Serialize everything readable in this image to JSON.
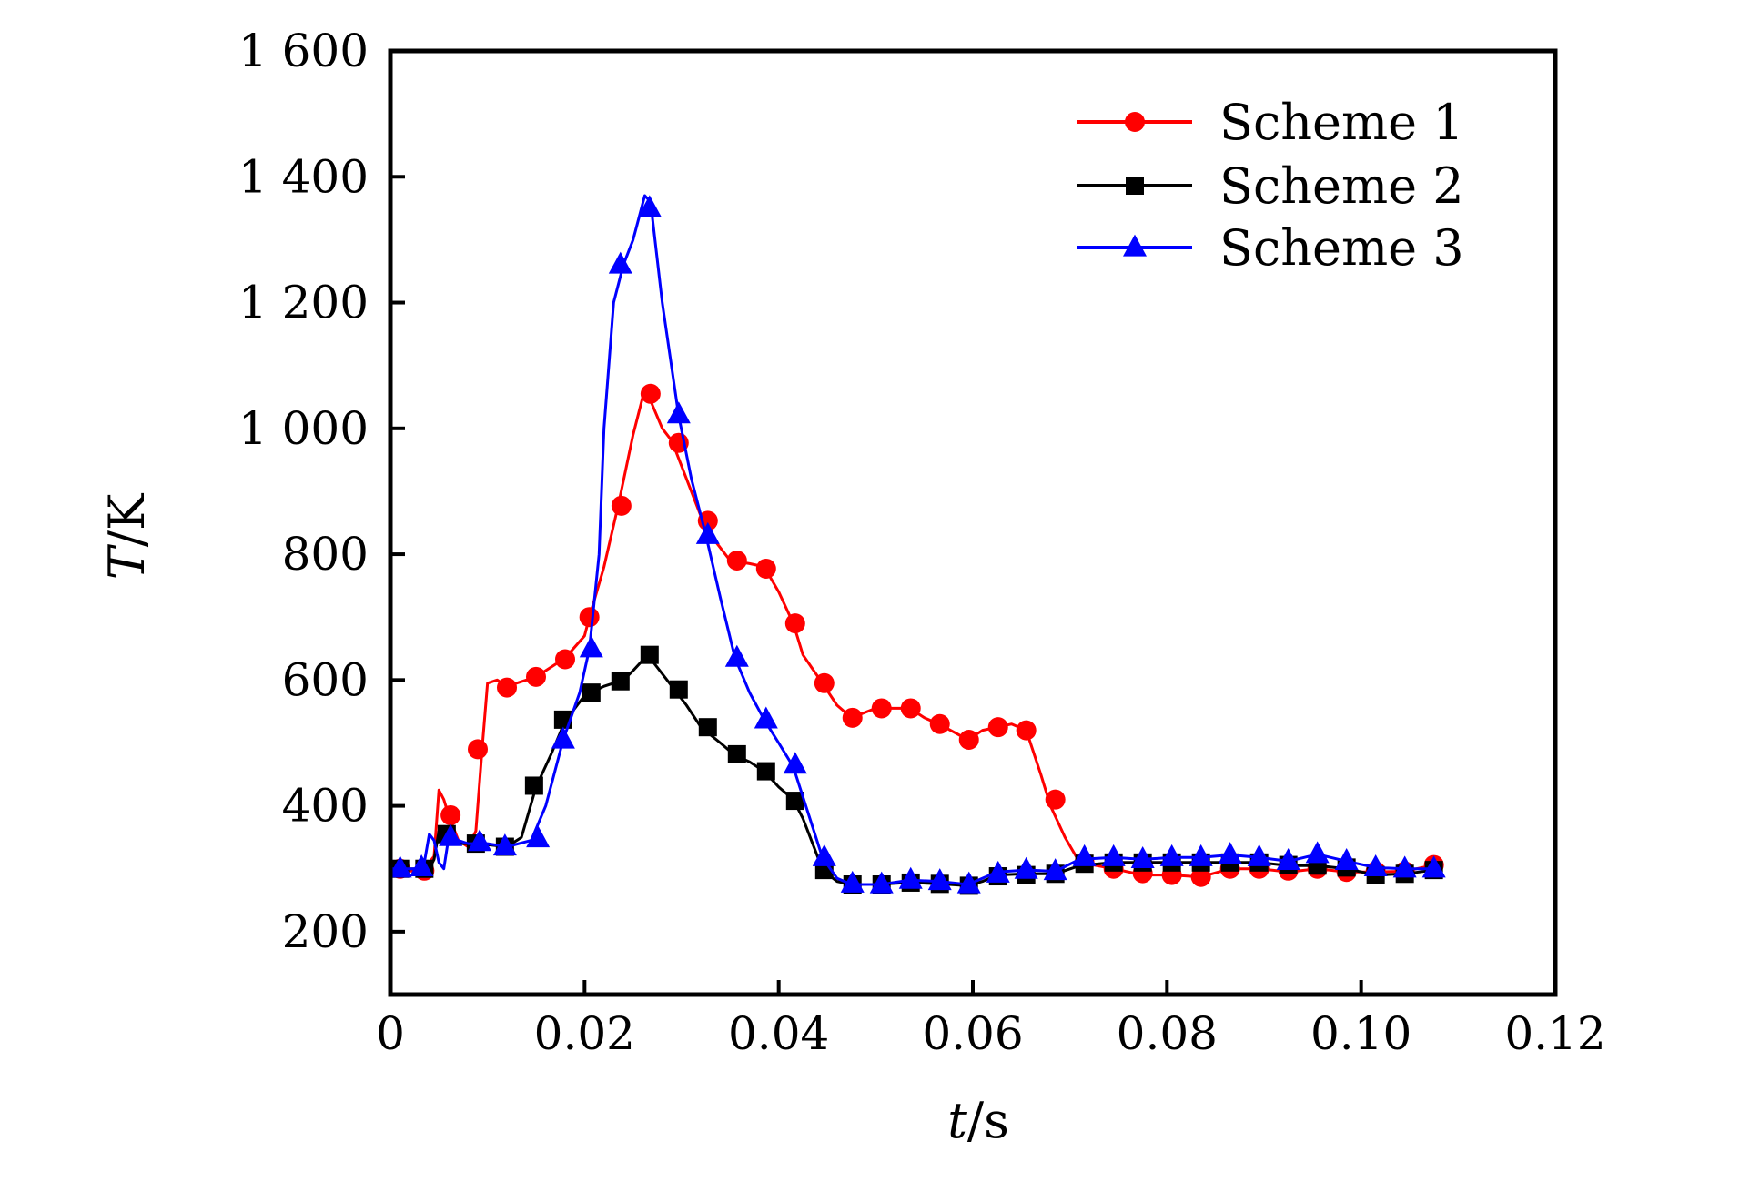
{
  "chart_data": {
    "type": "line",
    "title": "",
    "xlabel": {
      "var": "t",
      "unit": "/s"
    },
    "ylabel": {
      "var": "T",
      "unit": "/K"
    },
    "xlim": [
      0,
      0.12
    ],
    "ylim": [
      100,
      1600
    ],
    "x_ticks": [
      0,
      0.02,
      0.04,
      0.06,
      0.08,
      0.1,
      0.12
    ],
    "x_tick_labels": [
      "0",
      "0.02",
      "0.04",
      "0.06",
      "0.08",
      "0.10",
      "0.12"
    ],
    "y_ticks": [
      200,
      400,
      600,
      800,
      1000,
      1200,
      1400,
      1600
    ],
    "y_tick_labels": [
      "200",
      "400",
      "600",
      "800",
      "1 000",
      "1 200",
      "1 400",
      "1 600"
    ],
    "grid": false,
    "legend_position": "top-right",
    "series": [
      {
        "name": "Scheme 1",
        "color": "#ff0000",
        "marker": "circle",
        "line": [
          [
            0,
            300
          ],
          [
            0.003,
            295
          ],
          [
            0.004,
            310
          ],
          [
            0.0045,
            320
          ],
          [
            0.005,
            425
          ],
          [
            0.0055,
            410
          ],
          [
            0.006,
            385
          ],
          [
            0.007,
            345
          ],
          [
            0.008,
            335
          ],
          [
            0.0088,
            360
          ],
          [
            0.0095,
            500
          ],
          [
            0.01,
            595
          ],
          [
            0.011,
            600
          ],
          [
            0.012,
            590
          ],
          [
            0.015,
            605
          ],
          [
            0.018,
            635
          ],
          [
            0.02,
            670
          ],
          [
            0.0205,
            700
          ],
          [
            0.022,
            780
          ],
          [
            0.0235,
            880
          ],
          [
            0.025,
            990
          ],
          [
            0.026,
            1050
          ],
          [
            0.0265,
            1055
          ],
          [
            0.028,
            1000
          ],
          [
            0.029,
            980
          ],
          [
            0.0305,
            920
          ],
          [
            0.032,
            860
          ],
          [
            0.0335,
            820
          ],
          [
            0.035,
            790
          ],
          [
            0.037,
            785
          ],
          [
            0.0385,
            780
          ],
          [
            0.04,
            740
          ],
          [
            0.0415,
            690
          ],
          [
            0.0425,
            640
          ],
          [
            0.0445,
            595
          ],
          [
            0.046,
            560
          ],
          [
            0.0475,
            540
          ],
          [
            0.05,
            555
          ],
          [
            0.0535,
            555
          ],
          [
            0.055,
            540
          ],
          [
            0.0565,
            530
          ],
          [
            0.0595,
            505
          ],
          [
            0.061,
            520
          ],
          [
            0.0625,
            525
          ],
          [
            0.064,
            530
          ],
          [
            0.0655,
            520
          ],
          [
            0.067,
            450
          ],
          [
            0.068,
            400
          ],
          [
            0.0695,
            350
          ],
          [
            0.071,
            310
          ],
          [
            0.0745,
            300
          ],
          [
            0.0775,
            290
          ],
          [
            0.0805,
            290
          ],
          [
            0.0835,
            287
          ],
          [
            0.0865,
            300
          ],
          [
            0.0895,
            300
          ],
          [
            0.0925,
            295
          ],
          [
            0.0955,
            300
          ],
          [
            0.0985,
            295
          ],
          [
            0.1015,
            295
          ],
          [
            0.1045,
            296
          ],
          [
            0.1075,
            306
          ]
        ],
        "markers": [
          [
            0.001,
            300
          ],
          [
            0.0035,
            297
          ],
          [
            0.0062,
            385
          ],
          [
            0.009,
            490
          ],
          [
            0.012,
            588
          ],
          [
            0.015,
            605
          ],
          [
            0.018,
            633
          ],
          [
            0.0205,
            700
          ],
          [
            0.0238,
            877
          ],
          [
            0.0268,
            1055
          ],
          [
            0.0297,
            977
          ],
          [
            0.0327,
            853
          ],
          [
            0.0357,
            790
          ],
          [
            0.0387,
            777
          ],
          [
            0.0417,
            690
          ],
          [
            0.0447,
            595
          ],
          [
            0.0476,
            540
          ],
          [
            0.0506,
            555
          ],
          [
            0.0536,
            555
          ],
          [
            0.0566,
            530
          ],
          [
            0.0596,
            505
          ],
          [
            0.0626,
            525
          ],
          [
            0.0655,
            520
          ],
          [
            0.0685,
            410
          ],
          [
            0.0715,
            310
          ],
          [
            0.0745,
            300
          ],
          [
            0.0775,
            293
          ],
          [
            0.0805,
            290
          ],
          [
            0.0835,
            287
          ],
          [
            0.0865,
            300
          ],
          [
            0.0895,
            300
          ],
          [
            0.0925,
            297
          ],
          [
            0.0955,
            300
          ],
          [
            0.0985,
            295
          ],
          [
            0.1015,
            296
          ],
          [
            0.1045,
            296
          ],
          [
            0.1075,
            306
          ]
        ]
      },
      {
        "name": "Scheme 2",
        "color": "#000000",
        "marker": "square",
        "line": [
          [
            0,
            300
          ],
          [
            0.003,
            300
          ],
          [
            0.004,
            300
          ],
          [
            0.0045,
            315
          ],
          [
            0.005,
            360
          ],
          [
            0.0055,
            345
          ],
          [
            0.006,
            345
          ],
          [
            0.007,
            340
          ],
          [
            0.009,
            340
          ],
          [
            0.012,
            335
          ],
          [
            0.0135,
            350
          ],
          [
            0.015,
            430
          ],
          [
            0.0165,
            480
          ],
          [
            0.018,
            535
          ],
          [
            0.02,
            575
          ],
          [
            0.022,
            590
          ],
          [
            0.024,
            600
          ],
          [
            0.025,
            615
          ],
          [
            0.0265,
            640
          ],
          [
            0.0275,
            620
          ],
          [
            0.029,
            590
          ],
          [
            0.0305,
            560
          ],
          [
            0.032,
            525
          ],
          [
            0.034,
            500
          ],
          [
            0.0355,
            480
          ],
          [
            0.037,
            470
          ],
          [
            0.0385,
            455
          ],
          [
            0.04,
            430
          ],
          [
            0.0415,
            410
          ],
          [
            0.0425,
            380
          ],
          [
            0.044,
            320
          ],
          [
            0.0445,
            298
          ],
          [
            0.046,
            280
          ],
          [
            0.0475,
            275
          ],
          [
            0.05,
            275
          ],
          [
            0.0535,
            278
          ],
          [
            0.0565,
            276
          ],
          [
            0.0595,
            273
          ],
          [
            0.061,
            280
          ],
          [
            0.0625,
            290
          ],
          [
            0.0655,
            292
          ],
          [
            0.0685,
            292
          ],
          [
            0.071,
            305
          ],
          [
            0.0745,
            310
          ],
          [
            0.0775,
            310
          ],
          [
            0.0805,
            310
          ],
          [
            0.0835,
            310
          ],
          [
            0.0865,
            310
          ],
          [
            0.0895,
            310
          ],
          [
            0.0925,
            305
          ],
          [
            0.0955,
            305
          ],
          [
            0.0985,
            300
          ],
          [
            0.1015,
            290
          ],
          [
            0.1045,
            292
          ],
          [
            0.1075,
            298
          ]
        ],
        "markers": [
          [
            0.001,
            300
          ],
          [
            0.0035,
            300
          ],
          [
            0.0058,
            355
          ],
          [
            0.0088,
            340
          ],
          [
            0.0118,
            335
          ],
          [
            0.0148,
            432
          ],
          [
            0.0178,
            537
          ],
          [
            0.0207,
            580
          ],
          [
            0.0237,
            598
          ],
          [
            0.0267,
            640
          ],
          [
            0.0297,
            585
          ],
          [
            0.0327,
            525
          ],
          [
            0.0357,
            482
          ],
          [
            0.0387,
            455
          ],
          [
            0.0417,
            408
          ],
          [
            0.0447,
            298
          ],
          [
            0.0476,
            275
          ],
          [
            0.0506,
            275
          ],
          [
            0.0536,
            278
          ],
          [
            0.0566,
            276
          ],
          [
            0.0596,
            273
          ],
          [
            0.0626,
            288
          ],
          [
            0.0655,
            290
          ],
          [
            0.0685,
            292
          ],
          [
            0.0715,
            308
          ],
          [
            0.0745,
            310
          ],
          [
            0.0775,
            310
          ],
          [
            0.0805,
            310
          ],
          [
            0.0835,
            310
          ],
          [
            0.0865,
            310
          ],
          [
            0.0895,
            310
          ],
          [
            0.0925,
            306
          ],
          [
            0.0955,
            305
          ],
          [
            0.0985,
            302
          ],
          [
            0.1015,
            290
          ],
          [
            0.1045,
            292
          ],
          [
            0.1075,
            298
          ]
        ]
      },
      {
        "name": "Scheme 3",
        "color": "#0000ff",
        "marker": "triangle",
        "line": [
          [
            0,
            300
          ],
          [
            0.003,
            300
          ],
          [
            0.0035,
            310
          ],
          [
            0.004,
            355
          ],
          [
            0.0045,
            345
          ],
          [
            0.005,
            310
          ],
          [
            0.0055,
            300
          ],
          [
            0.006,
            350
          ],
          [
            0.008,
            340
          ],
          [
            0.01,
            340
          ],
          [
            0.012,
            335
          ],
          [
            0.0145,
            345
          ],
          [
            0.016,
            400
          ],
          [
            0.0178,
            505
          ],
          [
            0.0195,
            580
          ],
          [
            0.0205,
            650
          ],
          [
            0.0215,
            800
          ],
          [
            0.022,
            1000
          ],
          [
            0.023,
            1200
          ],
          [
            0.024,
            1260
          ],
          [
            0.025,
            1300
          ],
          [
            0.0262,
            1370
          ],
          [
            0.0268,
            1360
          ],
          [
            0.028,
            1200
          ],
          [
            0.0297,
            1020
          ],
          [
            0.031,
            920
          ],
          [
            0.0325,
            830
          ],
          [
            0.034,
            730
          ],
          [
            0.0355,
            635
          ],
          [
            0.037,
            580
          ],
          [
            0.0385,
            537
          ],
          [
            0.04,
            500
          ],
          [
            0.0415,
            462
          ],
          [
            0.043,
            390
          ],
          [
            0.0445,
            318
          ],
          [
            0.046,
            285
          ],
          [
            0.0475,
            275
          ],
          [
            0.0505,
            275
          ],
          [
            0.0535,
            282
          ],
          [
            0.0565,
            280
          ],
          [
            0.0595,
            275
          ],
          [
            0.061,
            285
          ],
          [
            0.0625,
            295
          ],
          [
            0.0655,
            298
          ],
          [
            0.0685,
            296
          ],
          [
            0.071,
            315
          ],
          [
            0.0745,
            318
          ],
          [
            0.0775,
            315
          ],
          [
            0.0805,
            318
          ],
          [
            0.0835,
            318
          ],
          [
            0.0865,
            322
          ],
          [
            0.0895,
            318
          ],
          [
            0.0925,
            312
          ],
          [
            0.0955,
            323
          ],
          [
            0.0985,
            312
          ],
          [
            0.1015,
            302
          ],
          [
            0.1045,
            300
          ],
          [
            0.1075,
            300
          ]
        ],
        "markers": [
          [
            0.001,
            300
          ],
          [
            0.0032,
            302
          ],
          [
            0.0062,
            350
          ],
          [
            0.0092,
            342
          ],
          [
            0.0118,
            335
          ],
          [
            0.0152,
            348
          ],
          [
            0.0178,
            505
          ],
          [
            0.0207,
            650
          ],
          [
            0.0237,
            1260
          ],
          [
            0.0267,
            1350
          ],
          [
            0.0297,
            1022
          ],
          [
            0.0327,
            830
          ],
          [
            0.0357,
            635
          ],
          [
            0.0387,
            537
          ],
          [
            0.0417,
            465
          ],
          [
            0.0447,
            318
          ],
          [
            0.0476,
            276
          ],
          [
            0.0506,
            275
          ],
          [
            0.0536,
            282
          ],
          [
            0.0566,
            280
          ],
          [
            0.0596,
            275
          ],
          [
            0.0626,
            292
          ],
          [
            0.0655,
            298
          ],
          [
            0.0685,
            296
          ],
          [
            0.0715,
            318
          ],
          [
            0.0745,
            318
          ],
          [
            0.0775,
            315
          ],
          [
            0.0805,
            318
          ],
          [
            0.0835,
            318
          ],
          [
            0.0865,
            322
          ],
          [
            0.0895,
            318
          ],
          [
            0.0925,
            312
          ],
          [
            0.0955,
            323
          ],
          [
            0.0985,
            312
          ],
          [
            0.1015,
            302
          ],
          [
            0.1045,
            300
          ],
          [
            0.1075,
            300
          ]
        ]
      }
    ]
  }
}
